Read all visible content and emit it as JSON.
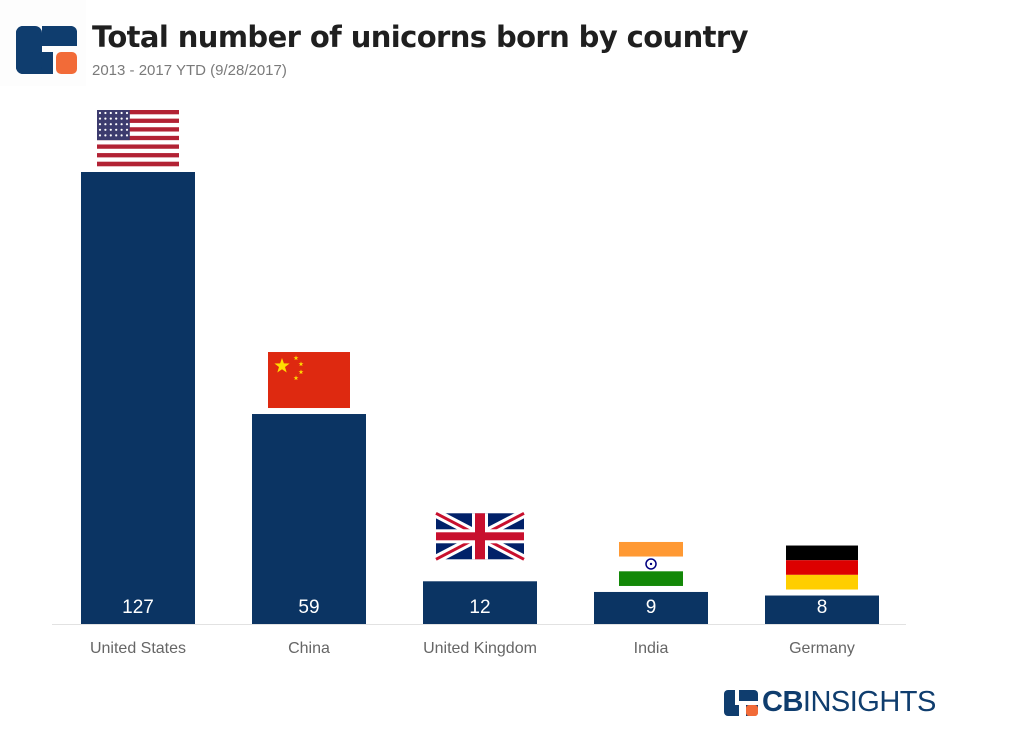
{
  "header": {
    "title": "Total number of unicorns born by country",
    "subtitle": "2013 - 2017 YTD (9/28/2017)"
  },
  "brand": {
    "name_bold": "CB",
    "name_light": "INSIGHTS",
    "colors": {
      "navy": "#0f3d6e",
      "orange": "#f26b38"
    }
  },
  "chart_data": {
    "type": "bar",
    "title": "Total number of unicorns born by country",
    "subtitle": "2013 - 2017 YTD (9/28/2017)",
    "xlabel": "",
    "ylabel": "",
    "ylim": [
      0,
      127
    ],
    "grid": false,
    "legend": "none",
    "bar_color": "#0b3463",
    "label_color": "#ffffff",
    "categories": [
      "United States",
      "China",
      "United Kingdom",
      "India",
      "Germany"
    ],
    "values": [
      127,
      59,
      12,
      9,
      8
    ],
    "data_labels": [
      "127",
      "59",
      "12",
      "9",
      "8"
    ],
    "flags": [
      "us-flag-icon",
      "china-flag-icon",
      "uk-flag-icon",
      "india-flag-icon",
      "germany-flag-icon"
    ]
  }
}
